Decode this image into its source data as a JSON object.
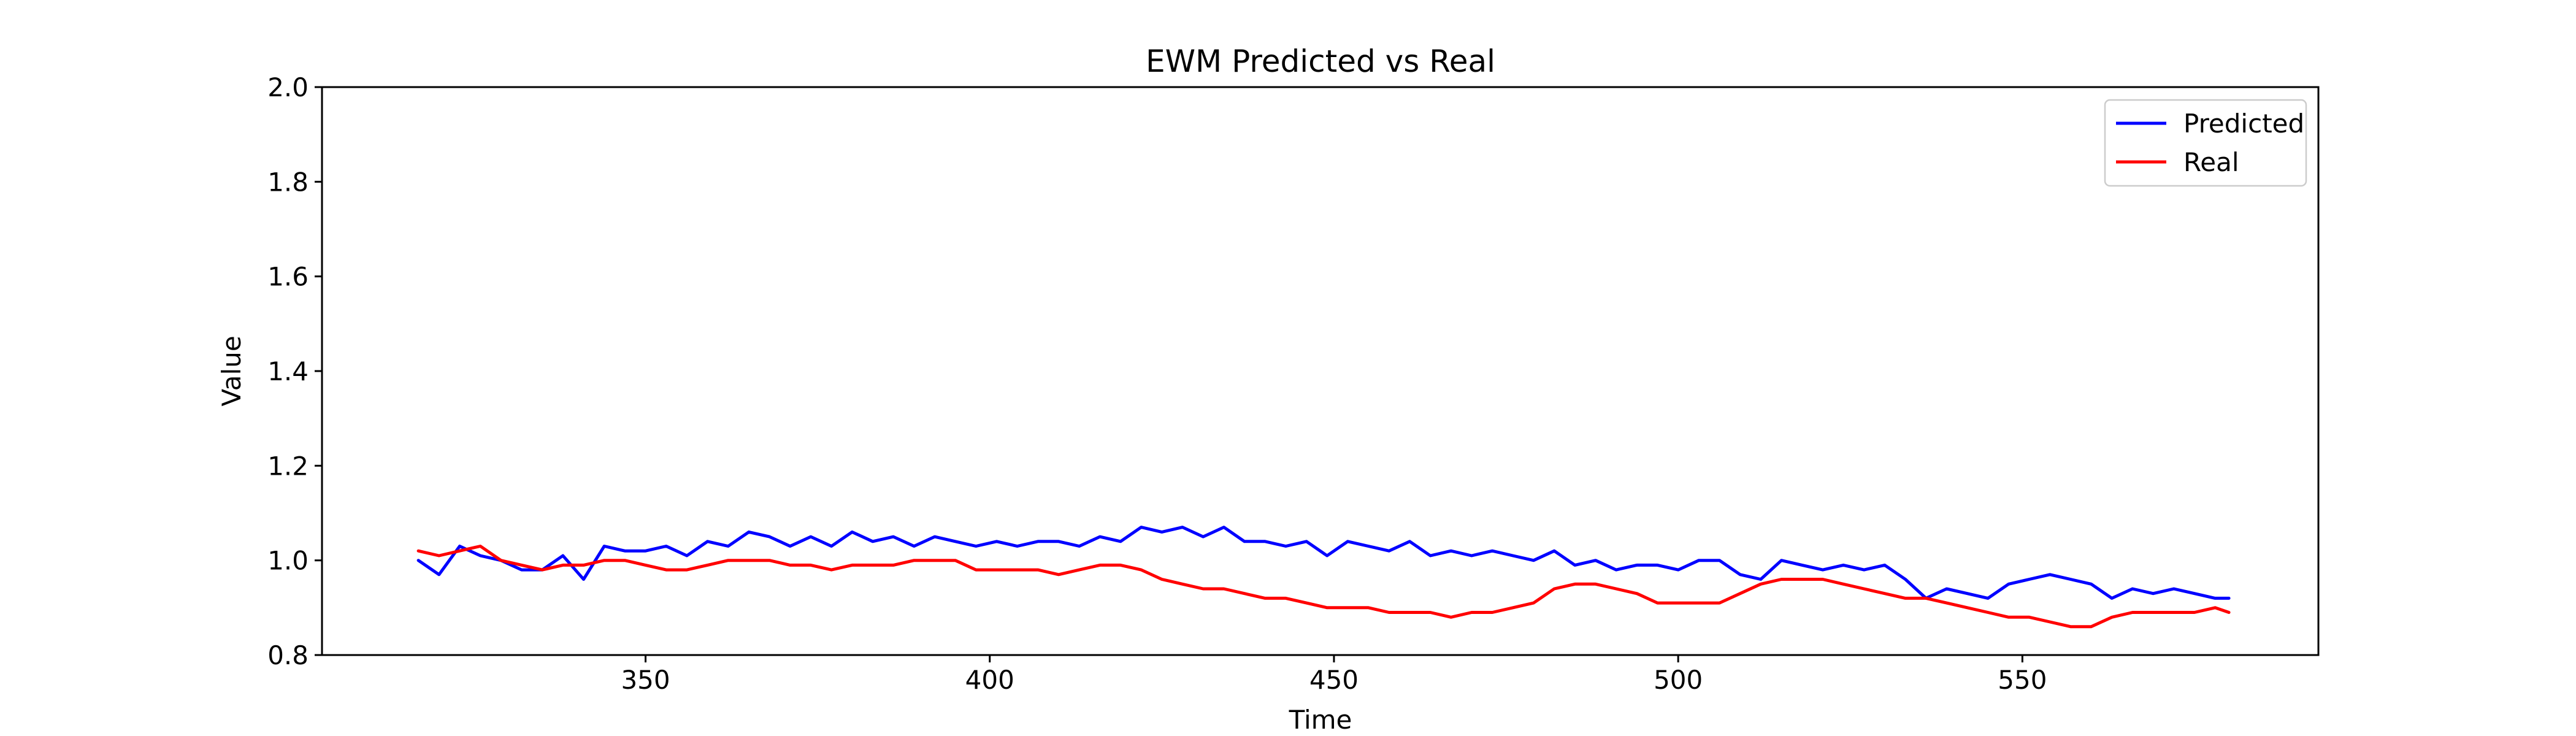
{
  "chart_data": {
    "type": "line",
    "title": "EWM Predicted vs Real",
    "xlabel": "Time",
    "ylabel": "Value",
    "xlim": [
      303,
      593
    ],
    "ylim": [
      0.8,
      2.0
    ],
    "x_ticks": [
      350,
      400,
      450,
      500,
      550
    ],
    "x_tick_labels": [
      "350",
      "400",
      "450",
      "500",
      "550"
    ],
    "y_ticks": [
      0.8,
      1.0,
      1.2,
      1.4,
      1.6,
      1.8,
      2.0
    ],
    "y_tick_labels": [
      "0.8",
      "1.0",
      "1.2",
      "1.4",
      "1.6",
      "1.8",
      "2.0"
    ],
    "grid": false,
    "legend_position": "top-right",
    "x": [
      317,
      320,
      323,
      326,
      329,
      332,
      335,
      338,
      341,
      344,
      347,
      350,
      353,
      356,
      359,
      362,
      365,
      368,
      371,
      374,
      377,
      380,
      383,
      386,
      389,
      392,
      395,
      398,
      401,
      404,
      407,
      410,
      413,
      416,
      419,
      422,
      425,
      428,
      431,
      434,
      437,
      440,
      443,
      446,
      449,
      452,
      455,
      458,
      461,
      464,
      467,
      470,
      473,
      476,
      479,
      482,
      485,
      488,
      491,
      494,
      497,
      500,
      503,
      506,
      509,
      512,
      515,
      518,
      521,
      524,
      527,
      530,
      533,
      536,
      539,
      542,
      545,
      548,
      551,
      554,
      557,
      560,
      563,
      566,
      569,
      572,
      575,
      578,
      580
    ],
    "series": [
      {
        "name": "Predicted",
        "color": "#0000ff",
        "values": [
          1.0,
          0.97,
          1.03,
          1.01,
          1.0,
          0.98,
          0.98,
          1.01,
          0.96,
          1.03,
          1.02,
          1.02,
          1.03,
          1.01,
          1.04,
          1.03,
          1.06,
          1.05,
          1.03,
          1.05,
          1.03,
          1.06,
          1.04,
          1.05,
          1.03,
          1.05,
          1.04,
          1.03,
          1.04,
          1.03,
          1.04,
          1.04,
          1.03,
          1.05,
          1.04,
          1.07,
          1.06,
          1.07,
          1.05,
          1.07,
          1.04,
          1.04,
          1.03,
          1.04,
          1.01,
          1.04,
          1.03,
          1.02,
          1.04,
          1.01,
          1.02,
          1.01,
          1.02,
          1.01,
          1.0,
          1.02,
          0.99,
          1.0,
          0.98,
          0.99,
          0.99,
          0.98,
          1.0,
          1.0,
          0.97,
          0.96,
          1.0,
          0.99,
          0.98,
          0.99,
          0.98,
          0.99,
          0.96,
          0.92,
          0.94,
          0.93,
          0.92,
          0.95,
          0.96,
          0.97,
          0.96,
          0.95,
          0.92,
          0.94,
          0.93,
          0.94,
          0.93,
          0.92,
          0.92
        ]
      },
      {
        "name": "Real",
        "color": "#ff0000",
        "values": [
          1.02,
          1.01,
          1.02,
          1.03,
          1.0,
          0.99,
          0.98,
          0.99,
          0.99,
          1.0,
          1.0,
          0.99,
          0.98,
          0.98,
          0.99,
          1.0,
          1.0,
          1.0,
          0.99,
          0.99,
          0.98,
          0.99,
          0.99,
          0.99,
          1.0,
          1.0,
          1.0,
          0.98,
          0.98,
          0.98,
          0.98,
          0.97,
          0.98,
          0.99,
          0.99,
          0.98,
          0.96,
          0.95,
          0.94,
          0.94,
          0.93,
          0.92,
          0.92,
          0.91,
          0.9,
          0.9,
          0.9,
          0.89,
          0.89,
          0.89,
          0.88,
          0.89,
          0.89,
          0.9,
          0.91,
          0.94,
          0.95,
          0.95,
          0.94,
          0.93,
          0.91,
          0.91,
          0.91,
          0.91,
          0.93,
          0.95,
          0.96,
          0.96,
          0.96,
          0.95,
          0.94,
          0.93,
          0.92,
          0.92,
          0.91,
          0.9,
          0.89,
          0.88,
          0.88,
          0.87,
          0.86,
          0.86,
          0.88,
          0.89,
          0.89,
          0.89,
          0.89,
          0.9,
          0.89
        ]
      }
    ]
  }
}
